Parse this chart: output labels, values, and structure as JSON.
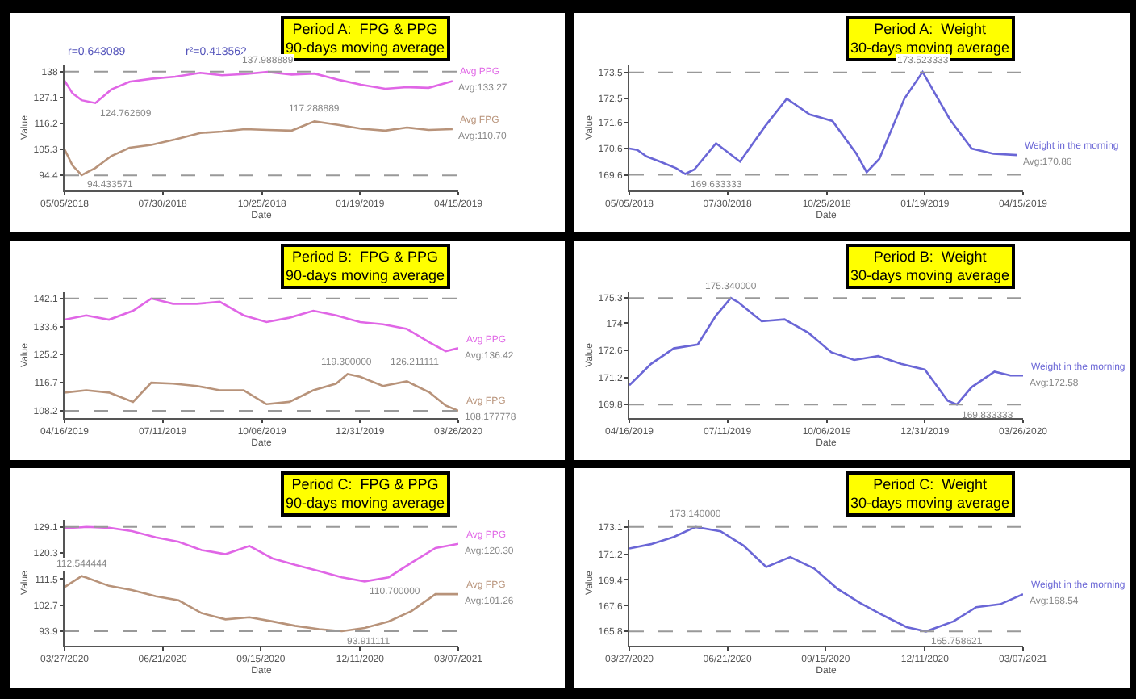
{
  "chart_data": [
    {
      "type": "line",
      "title": "Period A:  FPG & PPG\n90-days moving average",
      "xlabel": "Date",
      "ylabel": "Value",
      "legend": false,
      "grid": false,
      "marker": "none",
      "line_style": "solid",
      "x": [
        "2018-05-05",
        "2018-05-12",
        "2018-05-20",
        "2018-06-01",
        "2018-06-15",
        "2018-07-01",
        "2018-07-20",
        "2018-08-10",
        "2018-09-01",
        "2018-09-20",
        "2018-10-10",
        "2018-10-30",
        "2018-11-20",
        "2018-12-10",
        "2019-01-01",
        "2019-01-20",
        "2019-02-10",
        "2019-03-01",
        "2019-03-20",
        "2019-04-10"
      ],
      "series": [
        {
          "name": "Avg PPG",
          "color": "#e066e6",
          "values": [
            134.2,
            128.9,
            126.0,
            124.8,
            130.5,
            133.8,
            135.0,
            135.9,
            137.5,
            136.5,
            137.0,
            137.9,
            136.8,
            137.2,
            134.5,
            132.5,
            130.8,
            131.5,
            131.2,
            134.0
          ]
        },
        {
          "name": "Avg FPG",
          "color": "#b8937a",
          "values": [
            105.3,
            98.5,
            94.5,
            97.5,
            102.5,
            106.0,
            107.2,
            109.5,
            112.2,
            112.8,
            113.8,
            113.5,
            113.2,
            117.1,
            115.5,
            114.0,
            113.2,
            114.5,
            113.5,
            113.8
          ]
        }
      ],
      "xlim": [
        "2018-05-05",
        "2019-04-15"
      ],
      "xticks": [
        {
          "value": "2018-05-05",
          "label": "05/05/2018"
        },
        {
          "value": "2018-07-30",
          "label": "07/30/2018"
        },
        {
          "value": "2018-10-25",
          "label": "10/25/2018"
        },
        {
          "value": "2019-01-19",
          "label": "01/19/2019"
        },
        {
          "value": "2019-04-15",
          "label": "04/15/2019"
        }
      ],
      "ylim": [
        88,
        141
      ],
      "yticks": [
        94.4,
        105.3,
        116.2,
        127.1,
        138.0
      ],
      "ref_lines": [
        {
          "axis": "y",
          "value": 138.0,
          "color": "#999999",
          "line_style": "dashed"
        },
        {
          "axis": "y",
          "value": 94.4,
          "color": "#999999",
          "line_style": "dashed"
        }
      ],
      "annotations": [
        "r=0.643089",
        "r²=0.413562",
        {
          "text": "137.988889",
          "x": "2018-10-30",
          "y": 137.9
        },
        {
          "text": "124.762609",
          "x": "2018-06-01",
          "y": 124.8
        },
        {
          "text": "117.288889",
          "x": "2018-12-10",
          "y": 117.1
        },
        {
          "text": "94.433571",
          "x": "2018-05-20",
          "y": 94.5
        },
        {
          "text": "Avg:133.27",
          "x": "2019-04-10",
          "y": 134.0
        },
        {
          "text": "Avg:110.70",
          "x": "2019-04-10",
          "y": 113.8
        }
      ]
    },
    {
      "type": "line",
      "title": "Period A:  Weight\n30-days moving average",
      "xlabel": "Date",
      "ylabel": "Value",
      "legend": false,
      "grid": false,
      "marker": "none",
      "line_style": "solid",
      "x": [
        "2018-05-05",
        "2018-05-12",
        "2018-05-20",
        "2018-06-01",
        "2018-06-15",
        "2018-06-23",
        "2018-07-01",
        "2018-07-20",
        "2018-08-10",
        "2018-09-01",
        "2018-09-20",
        "2018-10-10",
        "2018-10-30",
        "2018-11-20",
        "2018-11-29",
        "2018-12-10",
        "2019-01-01",
        "2019-01-17",
        "2019-02-10",
        "2019-03-01",
        "2019-03-20",
        "2019-04-10"
      ],
      "series": [
        {
          "name": "Weight in the morning",
          "color": "#6a66d6",
          "values": [
            170.6,
            170.55,
            170.3,
            170.1,
            169.85,
            169.63,
            169.8,
            170.8,
            170.1,
            171.45,
            172.5,
            171.9,
            171.65,
            170.4,
            169.7,
            170.2,
            172.5,
            173.52,
            171.7,
            170.6,
            170.4,
            170.35
          ]
        }
      ],
      "xlim": [
        "2018-05-05",
        "2019-04-15"
      ],
      "xticks": [
        {
          "value": "2018-05-05",
          "label": "05/05/2018"
        },
        {
          "value": "2018-07-30",
          "label": "07/30/2018"
        },
        {
          "value": "2018-10-25",
          "label": "10/25/2018"
        },
        {
          "value": "2019-01-19",
          "label": "01/19/2019"
        },
        {
          "value": "2019-04-15",
          "label": "04/15/2019"
        }
      ],
      "ylim": [
        169.0,
        173.8
      ],
      "yticks": [
        169.6,
        170.6,
        171.6,
        172.5,
        173.5
      ],
      "ref_lines": [
        {
          "axis": "y",
          "value": 173.5,
          "color": "#999999",
          "line_style": "dashed"
        },
        {
          "axis": "y",
          "value": 169.6,
          "color": "#999999",
          "line_style": "dashed"
        }
      ],
      "annotations": [
        {
          "text": "173.523333",
          "x": "2019-01-17",
          "y": 173.52
        },
        {
          "text": "169.633333",
          "x": "2018-06-23",
          "y": 169.63
        },
        {
          "text": "Avg:170.86",
          "x": "2019-04-10",
          "y": 170.35
        }
      ]
    },
    {
      "type": "line",
      "title": "Period B:  FPG & PPG\n90-days moving average",
      "xlabel": "Date",
      "ylabel": "Value",
      "legend": false,
      "grid": false,
      "marker": "none",
      "line_style": "solid",
      "x": [
        "2019-04-16",
        "2019-05-05",
        "2019-05-25",
        "2019-06-15",
        "2019-07-01",
        "2019-07-20",
        "2019-08-10",
        "2019-08-30",
        "2019-09-20",
        "2019-10-10",
        "2019-10-30",
        "2019-11-20",
        "2019-12-10",
        "2019-12-20",
        "2019-12-31",
        "2020-01-20",
        "2020-02-10",
        "2020-03-01",
        "2020-03-15",
        "2020-03-26"
      ],
      "series": [
        {
          "name": "Avg PPG",
          "color": "#e066e6",
          "values": [
            135.7,
            137.0,
            135.7,
            138.4,
            142.1,
            140.5,
            140.5,
            141.1,
            137.0,
            135.0,
            136.3,
            138.4,
            137.0,
            136.0,
            135.0,
            134.3,
            132.9,
            128.8,
            126.2,
            127.1
          ]
        },
        {
          "name": "Avg FPG",
          "color": "#b8937a",
          "values": [
            113.7,
            114.4,
            113.7,
            110.9,
            116.7,
            116.4,
            115.7,
            114.4,
            114.4,
            110.2,
            110.9,
            114.4,
            116.4,
            119.3,
            118.5,
            115.7,
            117.1,
            113.7,
            109.8,
            108.2
          ]
        }
      ],
      "xlim": [
        "2019-04-16",
        "2020-03-26"
      ],
      "xticks": [
        {
          "value": "2019-04-16",
          "label": "04/16/2019"
        },
        {
          "value": "2019-07-11",
          "label": "07/11/2019"
        },
        {
          "value": "2019-10-06",
          "label": "10/06/2019"
        },
        {
          "value": "2019-12-31",
          "label": "12/31/2019"
        },
        {
          "value": "2020-03-26",
          "label": "03/26/2020"
        }
      ],
      "ylim": [
        106,
        144
      ],
      "yticks": [
        108.2,
        116.7,
        125.2,
        133.6,
        142.1
      ],
      "ref_lines": [
        {
          "axis": "y",
          "value": 142.1,
          "color": "#999999",
          "line_style": "dashed"
        },
        {
          "axis": "y",
          "value": 108.2,
          "color": "#999999",
          "line_style": "dashed"
        }
      ],
      "annotations": [
        {
          "text": "126.211111",
          "x": "2020-03-15",
          "y": 126.2
        },
        {
          "text": "119.300000",
          "x": "2019-12-20",
          "y": 119.3
        },
        {
          "text": "108.177778",
          "x": "2020-03-26",
          "y": 108.2
        },
        {
          "text": "Avg:136.42",
          "x": "2020-03-26",
          "y": 127.1
        }
      ]
    },
    {
      "type": "line",
      "title": "Period B:  Weight\n30-days moving average",
      "xlabel": "Date",
      "ylabel": "Value",
      "legend": false,
      "grid": false,
      "marker": "none",
      "line_style": "solid",
      "x": [
        "2019-04-16",
        "2019-05-05",
        "2019-05-25",
        "2019-06-15",
        "2019-07-01",
        "2019-07-14",
        "2019-07-20",
        "2019-08-10",
        "2019-08-30",
        "2019-09-20",
        "2019-10-10",
        "2019-10-30",
        "2019-11-20",
        "2019-12-10",
        "2019-12-31",
        "2020-01-20",
        "2020-01-28",
        "2020-02-10",
        "2020-03-01",
        "2020-03-15",
        "2020-03-26"
      ],
      "series": [
        {
          "name": "Weight in the morning",
          "color": "#6a66d6",
          "values": [
            170.8,
            171.9,
            172.7,
            172.9,
            174.4,
            175.3,
            175.1,
            174.1,
            174.2,
            173.5,
            172.5,
            172.1,
            172.3,
            171.9,
            171.6,
            170.0,
            169.8,
            170.7,
            171.5,
            171.3,
            171.3
          ]
        }
      ],
      "xlim": [
        "2019-04-16",
        "2020-03-26"
      ],
      "xticks": [
        {
          "value": "2019-04-16",
          "label": "04/16/2019"
        },
        {
          "value": "2019-07-11",
          "label": "07/11/2019"
        },
        {
          "value": "2019-10-06",
          "label": "10/06/2019"
        },
        {
          "value": "2019-12-31",
          "label": "12/31/2019"
        },
        {
          "value": "2020-03-26",
          "label": "03/26/2020"
        }
      ],
      "ylim": [
        169.1,
        175.6
      ],
      "yticks": [
        169.8,
        171.2,
        172.6,
        174.0,
        175.3
      ],
      "ref_lines": [
        {
          "axis": "y",
          "value": 175.3,
          "color": "#999999",
          "line_style": "dashed"
        },
        {
          "axis": "y",
          "value": 169.8,
          "color": "#999999",
          "line_style": "dashed"
        }
      ],
      "annotations": [
        {
          "text": "175.340000",
          "x": "2019-07-14",
          "y": 175.3
        },
        {
          "text": "169.833333",
          "x": "2020-01-28",
          "y": 169.8
        },
        {
          "text": "Avg:172.58",
          "x": "2020-03-26",
          "y": 171.3
        }
      ]
    },
    {
      "type": "line",
      "title": "Period C:  FPG & PPG\n90-days moving average",
      "xlabel": "Date",
      "ylabel": "Value",
      "legend": false,
      "grid": false,
      "marker": "none",
      "line_style": "solid",
      "x": [
        "2020-03-27",
        "2020-04-11",
        "2020-04-15",
        "2020-05-05",
        "2020-05-25",
        "2020-06-15",
        "2020-07-05",
        "2020-07-25",
        "2020-08-15",
        "2020-09-05",
        "2020-09-25",
        "2020-10-15",
        "2020-11-05",
        "2020-11-25",
        "2020-12-15",
        "2021-01-05",
        "2021-01-25",
        "2021-02-15",
        "2021-03-07"
      ],
      "series": [
        {
          "name": "Avg PPG",
          "color": "#e066e6",
          "values": [
            128.7,
            129.0,
            129.1,
            128.8,
            127.7,
            125.6,
            124.1,
            121.3,
            119.9,
            122.7,
            118.5,
            116.3,
            114.2,
            112.1,
            110.7,
            112.1,
            117.0,
            122.0,
            123.4
          ]
        },
        {
          "name": "Avg FPG",
          "color": "#b8937a",
          "values": [
            108.8,
            112.5,
            112.0,
            109.2,
            107.8,
            105.7,
            104.3,
            100.0,
            97.9,
            98.6,
            97.2,
            95.7,
            94.6,
            93.9,
            95.0,
            97.2,
            100.7,
            106.4,
            106.4
          ]
        }
      ],
      "xlim": [
        "2020-03-27",
        "2021-03-07"
      ],
      "xticks": [
        {
          "value": "2020-03-27",
          "label": "03/27/2020"
        },
        {
          "value": "2020-06-21",
          "label": "06/21/2020"
        },
        {
          "value": "2020-09-15",
          "label": "09/15/2020"
        },
        {
          "value": "2020-12-11",
          "label": "12/11/2020"
        },
        {
          "value": "2021-03-07",
          "label": "03/07/2021"
        }
      ],
      "ylim": [
        89,
        131.5
      ],
      "yticks": [
        93.9,
        102.7,
        111.5,
        120.3,
        129.1
      ],
      "ref_lines": [
        {
          "axis": "y",
          "value": 129.1,
          "color": "#999999",
          "line_style": "dashed"
        },
        {
          "axis": "y",
          "value": 93.9,
          "color": "#999999",
          "line_style": "dashed"
        }
      ],
      "annotations": [
        {
          "text": "112.544444",
          "x": "2020-04-11",
          "y": 112.5
        },
        {
          "text": "110.700000",
          "x": "2020-12-15",
          "y": 110.7
        },
        {
          "text": "93.911111",
          "x": "2020-11-25",
          "y": 93.9
        },
        {
          "text": "Avg:120.30",
          "x": "2021-03-07",
          "y": 123.4
        },
        {
          "text": "Avg:101.26",
          "x": "2021-03-07",
          "y": 106.4
        }
      ]
    },
    {
      "type": "line",
      "title": "Period C:  Weight\n30-days moving average",
      "xlabel": "Date",
      "ylabel": "Value",
      "legend": false,
      "grid": false,
      "marker": "none",
      "line_style": "solid",
      "x": [
        "2020-03-27",
        "2020-04-15",
        "2020-05-05",
        "2020-05-24",
        "2020-06-15",
        "2020-07-05",
        "2020-07-25",
        "2020-08-15",
        "2020-09-05",
        "2020-09-25",
        "2020-10-15",
        "2020-11-05",
        "2020-11-25",
        "2020-12-12",
        "2021-01-05",
        "2021-01-25",
        "2021-02-15",
        "2021-03-07"
      ],
      "series": [
        {
          "name": "Weight in the morning",
          "color": "#6a66d6",
          "values": [
            171.6,
            171.9,
            172.4,
            173.1,
            172.8,
            171.8,
            170.3,
            171.0,
            170.2,
            168.8,
            167.8,
            166.9,
            166.1,
            165.8,
            166.5,
            167.5,
            167.7,
            168.4
          ]
        }
      ],
      "xlim": [
        "2020-03-27",
        "2021-03-07"
      ],
      "xticks": [
        {
          "value": "2020-03-27",
          "label": "03/27/2020"
        },
        {
          "value": "2020-06-21",
          "label": "06/21/2020"
        },
        {
          "value": "2020-09-15",
          "label": "09/15/2020"
        },
        {
          "value": "2020-12-11",
          "label": "12/11/2020"
        },
        {
          "value": "2021-03-07",
          "label": "03/07/2021"
        }
      ],
      "ylim": [
        164.8,
        173.6
      ],
      "yticks": [
        165.8,
        167.6,
        169.4,
        171.2,
        173.1
      ],
      "ref_lines": [
        {
          "axis": "y",
          "value": 173.1,
          "color": "#999999",
          "line_style": "dashed"
        },
        {
          "axis": "y",
          "value": 165.8,
          "color": "#999999",
          "line_style": "dashed"
        }
      ],
      "annotations": [
        {
          "text": "173.140000",
          "x": "2020-05-24",
          "y": 173.1
        },
        {
          "text": "165.758621",
          "x": "2020-12-12",
          "y": 165.8
        },
        {
          "text": "Avg:168.54",
          "x": "2021-03-07",
          "y": 168.4
        }
      ]
    }
  ]
}
